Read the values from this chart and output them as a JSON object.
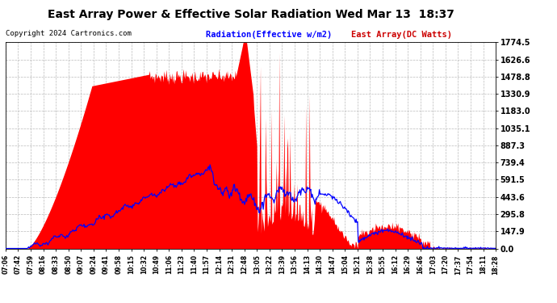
{
  "title": "East Array Power & Effective Solar Radiation Wed Mar 13  18:37",
  "copyright": "Copyright 2024 Cartronics.com",
  "legend_radiation": "Radiation(Effective w/m2)",
  "legend_array": "East Array(DC Watts)",
  "ymin": 0.0,
  "ymax": 1774.5,
  "yticks": [
    0.0,
    147.9,
    295.8,
    443.6,
    591.5,
    739.4,
    887.3,
    1035.1,
    1183.0,
    1330.9,
    1478.8,
    1626.6,
    1774.5
  ],
  "bg_color": "#ffffff",
  "grid_color": "#bbbbbb",
  "fill_color": "#ff0000",
  "line_color": "#0000ff",
  "title_color": "#000000",
  "copyright_color": "#000000",
  "radiation_label_color": "#0000ff",
  "array_label_color": "#cc0000",
  "xtick_labels": [
    "07:06",
    "07:42",
    "07:59",
    "08:16",
    "08:33",
    "08:50",
    "09:07",
    "09:24",
    "09:41",
    "09:58",
    "10:15",
    "10:32",
    "10:49",
    "11:06",
    "11:23",
    "11:40",
    "11:57",
    "12:14",
    "12:31",
    "12:48",
    "13:05",
    "13:22",
    "13:39",
    "13:56",
    "14:13",
    "14:30",
    "14:47",
    "15:04",
    "15:21",
    "15:38",
    "15:55",
    "16:12",
    "16:29",
    "16:46",
    "17:03",
    "17:20",
    "17:37",
    "17:54",
    "18:11",
    "18:28"
  ]
}
